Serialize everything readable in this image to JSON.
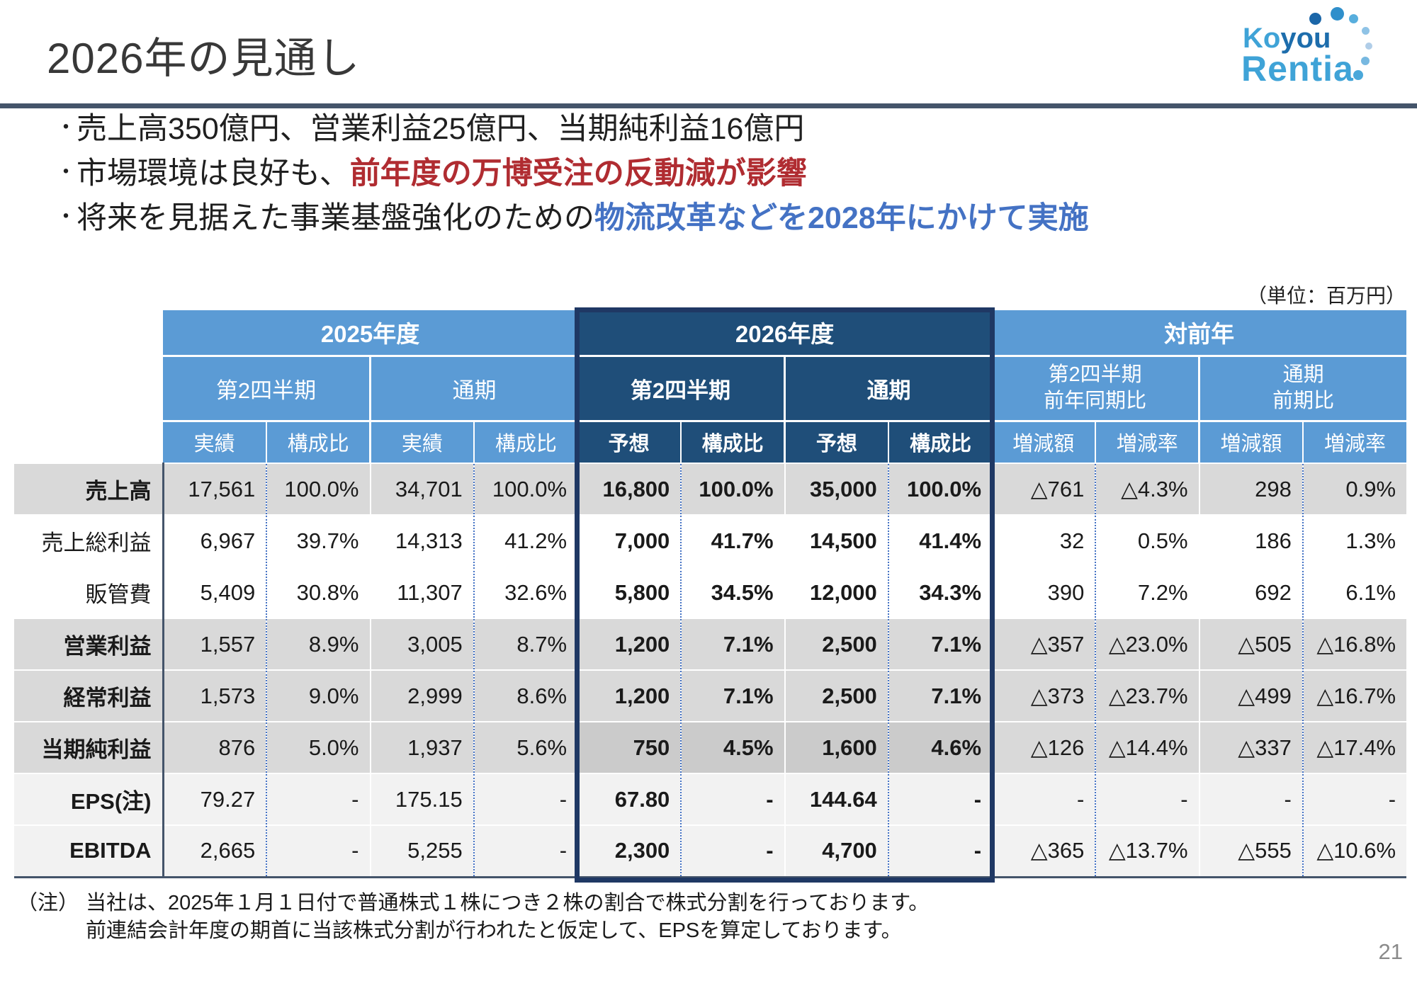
{
  "page_title": "2026年の見通し",
  "logo": {
    "word1a": "Ko",
    "word1b": "you",
    "word2": "Rentia"
  },
  "bullet_char": "・",
  "bullets": [
    {
      "prefix": "売上高350億円、営業利益25億円、当期純利益16億円",
      "highlight": ""
    },
    {
      "prefix": "市場環境は良好も、",
      "highlight": "前年度の万博受注の反動減が影響"
    },
    {
      "prefix": "将来を見据えた事業基盤強化のための",
      "highlight": "物流改革などを2028年にかけて実施"
    }
  ],
  "unit_label": "（単位：百万円）",
  "table": {
    "groups": [
      {
        "year": "2025年度",
        "periods": [
          {
            "line1": "第2四半期",
            "line2": "",
            "metrics": [
              "実績",
              "構成比"
            ]
          },
          {
            "line1": "通期",
            "line2": "",
            "metrics": [
              "実績",
              "構成比"
            ]
          }
        ]
      },
      {
        "year": "2026年度",
        "periods": [
          {
            "line1": "第2四半期",
            "line2": "",
            "metrics": [
              "予想",
              "構成比"
            ]
          },
          {
            "line1": "通期",
            "line2": "",
            "metrics": [
              "予想",
              "構成比"
            ]
          }
        ]
      },
      {
        "year": "対前年",
        "periods": [
          {
            "line1": "第2四半期",
            "line2": "前年同期比",
            "metrics": [
              "増減額",
              "増減率"
            ]
          },
          {
            "line1": "通期",
            "line2": "前期比",
            "metrics": [
              "増減額",
              "増減率"
            ]
          }
        ]
      }
    ],
    "rows": [
      {
        "label": "売上高",
        "bold_label": true,
        "shade": "gray",
        "cells": [
          "17,561",
          "100.0%",
          "34,701",
          "100.0%",
          "16,800",
          "100.0%",
          "35,000",
          "100.0%",
          "△761",
          "△4.3%",
          "298",
          "0.9%"
        ]
      },
      {
        "label": "売上総利益",
        "bold_label": false,
        "shade": "white",
        "cells": [
          "6,967",
          "39.7%",
          "14,313",
          "41.2%",
          "7,000",
          "41.7%",
          "14,500",
          "41.4%",
          "32",
          "0.5%",
          "186",
          "1.3%"
        ]
      },
      {
        "label": "販管費",
        "bold_label": false,
        "shade": "white",
        "cells": [
          "5,409",
          "30.8%",
          "11,307",
          "32.6%",
          "5,800",
          "34.5%",
          "12,000",
          "34.3%",
          "390",
          "7.2%",
          "692",
          "6.1%"
        ]
      },
      {
        "label": "営業利益",
        "bold_label": true,
        "shade": "gray",
        "cells": [
          "1,557",
          "8.9%",
          "3,005",
          "8.7%",
          "1,200",
          "7.1%",
          "2,500",
          "7.1%",
          "△357",
          "△23.0%",
          "△505",
          "△16.8%"
        ]
      },
      {
        "label": "経常利益",
        "bold_label": true,
        "shade": "gray",
        "cells": [
          "1,573",
          "9.0%",
          "2,999",
          "8.6%",
          "1,200",
          "7.1%",
          "2,500",
          "7.1%",
          "△373",
          "△23.7%",
          "△499",
          "△16.7%"
        ]
      },
      {
        "label": "当期純利益",
        "bold_label": true,
        "shade": "gray",
        "box_shade": "graydark",
        "cells": [
          "876",
          "5.0%",
          "1,937",
          "5.6%",
          "750",
          "4.5%",
          "1,600",
          "4.6%",
          "△126",
          "△14.4%",
          "△337",
          "△17.4%"
        ]
      },
      {
        "label": "EPS(注)",
        "bold_label": true,
        "shade": "light",
        "cells": [
          "79.27",
          "-",
          "175.15",
          "-",
          "67.80",
          "-",
          "144.64",
          "-",
          "-",
          "-",
          "-",
          "-"
        ]
      },
      {
        "label": "EBITDA",
        "bold_label": true,
        "shade": "light",
        "cells": [
          "2,665",
          "-",
          "5,255",
          "-",
          "2,300",
          "-",
          "4,700",
          "-",
          "△365",
          "△13.7%",
          "△555",
          "△10.6%"
        ]
      }
    ]
  },
  "footnote": {
    "marker": "（注）",
    "line1": "当社は、2025年１月１日付で普通株式１株につき２株の割合で株式分割を行っております。",
    "line2": "前連結会計年度の期首に当該株式分割が行われたと仮定して、EPSを算定しております。"
  },
  "page_number": "21",
  "colors": {
    "accent_red": "#b02c31",
    "accent_blue": "#4472c4",
    "header_light_blue": "#5b9bd5",
    "header_dark_blue": "#1f4e79",
    "box_border_navy": "#1f3864",
    "divider": "#44546a",
    "row_gray": "#d9d9d9",
    "row_light": "#f2f2f2"
  }
}
